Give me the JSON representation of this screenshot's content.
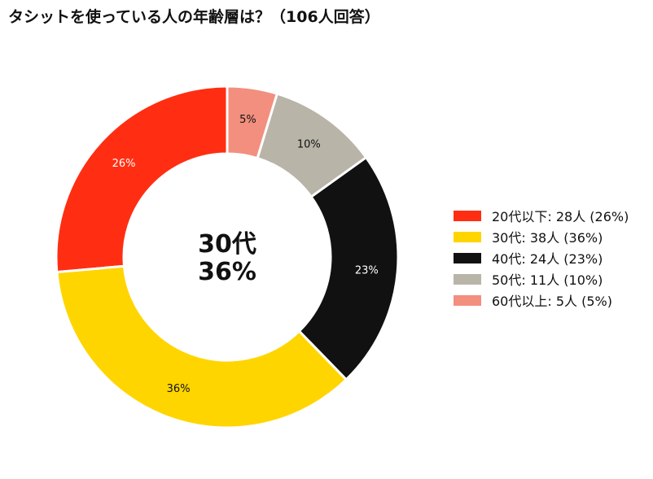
{
  "title": "タシットを使っている人の年齢層は？（106人回答）",
  "center": {
    "line1": "30代",
    "line2": "36%"
  },
  "legend": [
    {
      "label": "20代以下:  28人 (26%)",
      "color": "#FF2E12"
    },
    {
      "label": "30代:  38人 (36%)",
      "color": "#FFD500"
    },
    {
      "label": "40代:  24人 (23%)",
      "color": "#111111"
    },
    {
      "label": "50代:  11人 (10%)",
      "color": "#B8B4A8"
    },
    {
      "label": "60代以上:  5人 (5%)",
      "color": "#F28F7F"
    }
  ],
  "chart_data": {
    "type": "pie",
    "title": "タシットを使っている人の年齢層は？（106人回答）",
    "total": 106,
    "categories": [
      "20代以下",
      "30代",
      "40代",
      "50代",
      "60代以上"
    ],
    "values": [
      28,
      38,
      24,
      11,
      5
    ],
    "percent_labels": [
      "26%",
      "36%",
      "23%",
      "10%",
      "5%"
    ],
    "colors": [
      "#FF2E12",
      "#FFD500",
      "#111111",
      "#B8B4A8",
      "#F28F7F"
    ],
    "label_colors": [
      "#ffffff",
      "#111111",
      "#ffffff",
      "#111111",
      "#111111"
    ],
    "donut": true,
    "legend_position": "right"
  }
}
